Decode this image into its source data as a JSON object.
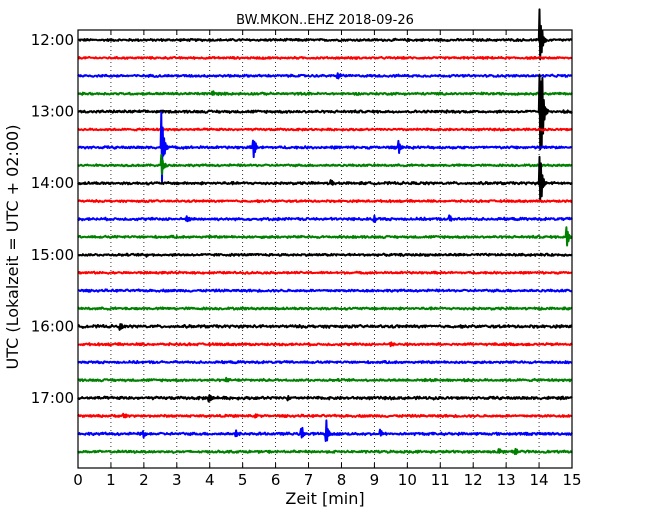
{
  "chart_data": {
    "type": "line",
    "title": "BW.MKON..EHZ 2018-09-26",
    "xlabel": "Zeit  [min]",
    "ylabel": "UTC (Lokalzeit = UTC + 02:00)",
    "xlim": [
      0,
      15
    ],
    "xticks": [
      "0",
      "1",
      "2",
      "3",
      "4",
      "5",
      "6",
      "7",
      "8",
      "9",
      "10",
      "11",
      "12",
      "13",
      "14",
      "15"
    ],
    "ytick_labels": [
      "12:00",
      "13:00",
      "14:00",
      "15:00",
      "16:00",
      "17:00"
    ],
    "grid": "dotted-vertical",
    "trace_colors": [
      "#000000",
      "#ff0000",
      "#0000ff",
      "#008000"
    ],
    "traces": [
      {
        "start": "12:00",
        "noise": 0.9,
        "events": [
          {
            "t": 14.05,
            "amp": 30
          }
        ]
      },
      {
        "start": "12:15",
        "noise": 0.8,
        "events": []
      },
      {
        "start": "12:30",
        "noise": 0.9,
        "events": [
          {
            "t": 7.9,
            "amp": 3
          }
        ]
      },
      {
        "start": "12:45",
        "noise": 0.9,
        "events": [
          {
            "t": 4.1,
            "amp": 2.5
          }
        ]
      },
      {
        "start": "13:00",
        "noise": 1.0,
        "events": [
          {
            "t": 14.05,
            "amp": 45
          },
          {
            "t": 14.1,
            "amp": 25
          }
        ]
      },
      {
        "start": "13:15",
        "noise": 0.8,
        "events": []
      },
      {
        "start": "13:30",
        "noise": 1.0,
        "events": [
          {
            "t": 2.55,
            "amp": 40
          },
          {
            "t": 5.35,
            "amp": 10
          },
          {
            "t": 9.75,
            "amp": 8
          }
        ]
      },
      {
        "start": "13:45",
        "noise": 0.8,
        "events": [
          {
            "t": 2.55,
            "amp": 12
          }
        ]
      },
      {
        "start": "14:00",
        "noise": 1.0,
        "events": [
          {
            "t": 7.7,
            "amp": 3
          },
          {
            "t": 14.05,
            "amp": 28
          }
        ]
      },
      {
        "start": "14:15",
        "noise": 0.8,
        "events": []
      },
      {
        "start": "14:30",
        "noise": 1.0,
        "events": [
          {
            "t": 3.3,
            "amp": 3
          },
          {
            "t": 9.0,
            "amp": 3.5
          },
          {
            "t": 11.3,
            "amp": 3
          }
        ]
      },
      {
        "start": "14:45",
        "noise": 0.9,
        "events": [
          {
            "t": 14.85,
            "amp": 12
          }
        ]
      },
      {
        "start": "15:00",
        "noise": 0.9,
        "events": [
          {
            "t": 2.1,
            "amp": 2
          }
        ]
      },
      {
        "start": "15:15",
        "noise": 0.8,
        "events": []
      },
      {
        "start": "15:30",
        "noise": 0.9,
        "events": []
      },
      {
        "start": "15:45",
        "noise": 0.9,
        "events": []
      },
      {
        "start": "16:00",
        "noise": 1.1,
        "events": [
          {
            "t": 1.3,
            "amp": 2.5
          }
        ]
      },
      {
        "start": "16:15",
        "noise": 0.9,
        "events": [
          {
            "t": 9.5,
            "amp": 3
          }
        ]
      },
      {
        "start": "16:30",
        "noise": 0.9,
        "events": []
      },
      {
        "start": "16:45",
        "noise": 0.9,
        "events": [
          {
            "t": 4.5,
            "amp": 2
          }
        ]
      },
      {
        "start": "17:00",
        "noise": 1.1,
        "events": [
          {
            "t": 4.0,
            "amp": 4
          },
          {
            "t": 6.4,
            "amp": 3
          }
        ]
      },
      {
        "start": "17:15",
        "noise": 0.9,
        "events": [
          {
            "t": 1.4,
            "amp": 3
          },
          {
            "t": 5.4,
            "amp": 3
          }
        ]
      },
      {
        "start": "17:30",
        "noise": 1.0,
        "events": [
          {
            "t": 2.0,
            "amp": 3
          },
          {
            "t": 4.8,
            "amp": 4
          },
          {
            "t": 6.8,
            "amp": 8
          },
          {
            "t": 7.55,
            "amp": 14
          },
          {
            "t": 9.2,
            "amp": 4
          }
        ]
      },
      {
        "start": "17:45",
        "noise": 0.9,
        "events": [
          {
            "t": 12.8,
            "amp": 3
          },
          {
            "t": 13.3,
            "amp": 3
          }
        ]
      }
    ]
  }
}
